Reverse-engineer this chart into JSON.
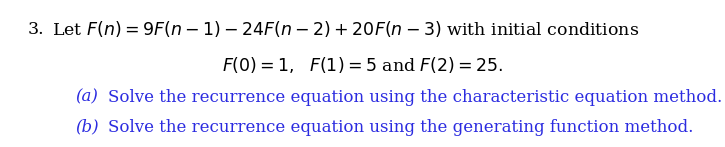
{
  "background_color": "#ffffff",
  "main_text_color": "#000000",
  "sub_text_color": "#2B2BE0",
  "fontsize_main": 12.5,
  "fontsize_sub": 12.0,
  "fig_width": 7.25,
  "fig_height": 1.47,
  "dpi": 100,
  "line1a": "3.\\u2002 Let ",
  "line1b": "$F(n) = 9F(n-1) - 24F(n-2) + 20F(n-3)$",
  "line1c": " with initial conditions",
  "line2": "$F(0) = 1,\\;\\; F(1) = 5$ and $F(2) = 25.$",
  "line3a": "(a)\\u2003",
  "line3b": "Solve the recurrence equation using the characteristic equation method.",
  "line4a": "(b)\\u2003",
  "line4b": "Solve the recurrence equation using the generating function method."
}
